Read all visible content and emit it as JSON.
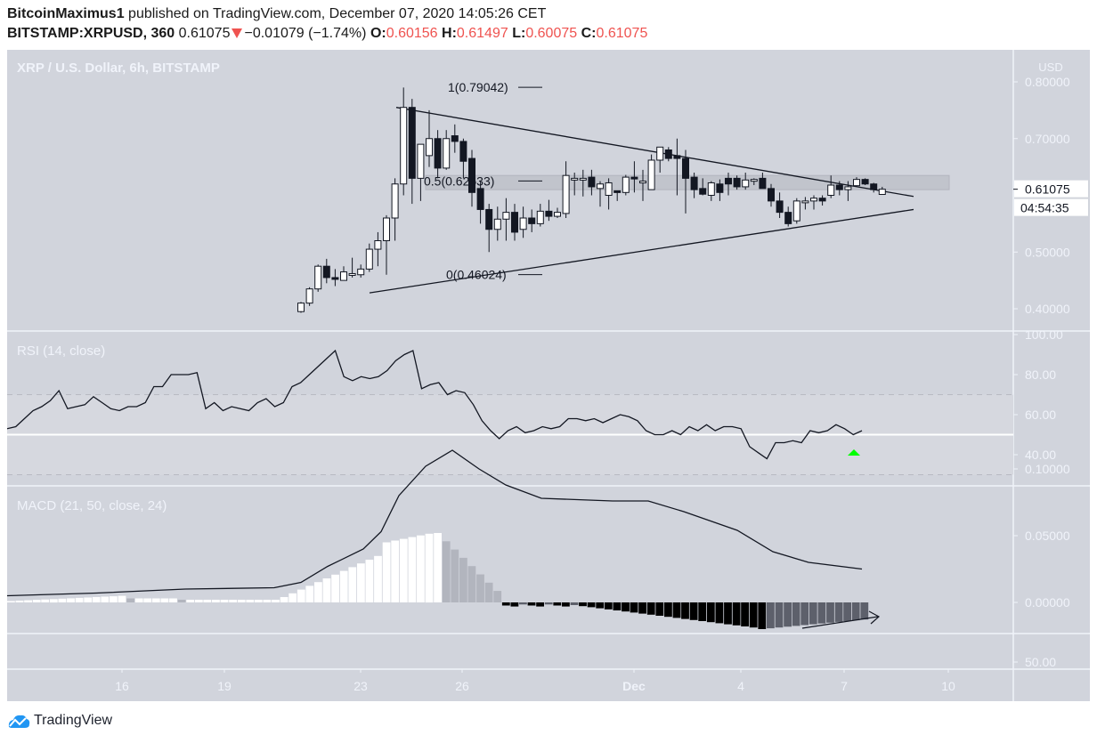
{
  "header": {
    "author": "BitcoinMaximus1",
    "published_text": "published on TradingView.com, December 07, 2020 14:05:26 CET",
    "symbol": "BITSTAMP:XRPUSD, 360",
    "last": "0.61075",
    "change": "−0.01079 (−1.74%)",
    "o_label": "O:",
    "o": "0.60156",
    "h_label": "H:",
    "h": "0.61497",
    "l_label": "L:",
    "l": "0.60075",
    "c_label": "C:",
    "c": "0.61075",
    "direction_icon": "down-triangle-icon"
  },
  "colors": {
    "background": "#d1d4dc",
    "up_candle": "#ffffff",
    "down_candle": "#131722",
    "down_arrow": "#ef5350",
    "rsi_signal": "#00ff00",
    "macd_hist_pos_strong": "#ffffff",
    "macd_hist_pos_weak": "#b2b5be",
    "macd_hist_neg_strong": "#000000",
    "macd_hist_neg_weak": "#5d606b"
  },
  "price_pane": {
    "title": "XRP / U.S. Dollar, 6h, BITSTAMP",
    "currency": "USD",
    "last_price_label": "0.61075",
    "countdown": "04:54:35",
    "fib": {
      "f1": "1(0.79042)",
      "f05": "0.5(0.62533)",
      "f0": "0(0.46024)"
    }
  },
  "rsi_pane": {
    "title": "RSI (14, close)"
  },
  "macd_pane": {
    "title": "MACD (21, 50, close, 24)"
  },
  "extra_pane": {
    "tick": "50.00"
  },
  "footer": {
    "brand": "TradingView",
    "logo_icon": "tradingview-logo-icon"
  },
  "chart_data": [
    {
      "type": "candlestick",
      "title": "XRP / U.S. Dollar, 6h, BITSTAMP",
      "ylabel": "USD",
      "y_ticks": [
        0.8,
        0.7,
        0.5,
        0.4
      ],
      "ylim": [
        0.38,
        0.82
      ],
      "x_ticks": [
        "16",
        "19",
        "23",
        "26",
        "Dec",
        "4",
        "7",
        "10"
      ],
      "candles_ohlc": [
        [
          0.395,
          0.412,
          0.393,
          0.41
        ],
        [
          0.41,
          0.438,
          0.405,
          0.435
        ],
        [
          0.435,
          0.478,
          0.43,
          0.475
        ],
        [
          0.475,
          0.488,
          0.445,
          0.455
        ],
        [
          0.455,
          0.47,
          0.44,
          0.452
        ],
        [
          0.45,
          0.475,
          0.45,
          0.465
        ],
        [
          0.462,
          0.49,
          0.455,
          0.462
        ],
        [
          0.46,
          0.478,
          0.455,
          0.47
        ],
        [
          0.47,
          0.515,
          0.465,
          0.505
        ],
        [
          0.505,
          0.535,
          0.475,
          0.52
        ],
        [
          0.52,
          0.565,
          0.46,
          0.56
        ],
        [
          0.56,
          0.63,
          0.52,
          0.62
        ],
        [
          0.62,
          0.79,
          0.6,
          0.755
        ],
        [
          0.755,
          0.77,
          0.585,
          0.63
        ],
        [
          0.63,
          0.665,
          0.59,
          0.69
        ],
        [
          0.67,
          0.75,
          0.65,
          0.7
        ],
        [
          0.7,
          0.715,
          0.63,
          0.648
        ],
        [
          0.648,
          0.715,
          0.645,
          0.7
        ],
        [
          0.705,
          0.725,
          0.675,
          0.695
        ],
        [
          0.695,
          0.7,
          0.63,
          0.66
        ],
        [
          0.665,
          0.68,
          0.58,
          0.605
        ],
        [
          0.612,
          0.625,
          0.55,
          0.575
        ],
        [
          0.575,
          0.585,
          0.5,
          0.54
        ],
        [
          0.54,
          0.58,
          0.52,
          0.558
        ],
        [
          0.558,
          0.595,
          0.52,
          0.57
        ],
        [
          0.57,
          0.585,
          0.52,
          0.535
        ],
        [
          0.54,
          0.58,
          0.525,
          0.56
        ],
        [
          0.56,
          0.575,
          0.535,
          0.55
        ],
        [
          0.55,
          0.585,
          0.545,
          0.572
        ],
        [
          0.572,
          0.592,
          0.555,
          0.563
        ],
        [
          0.563,
          0.578,
          0.56,
          0.57
        ],
        [
          0.568,
          0.66,
          0.56,
          0.635
        ],
        [
          0.63,
          0.64,
          0.6,
          0.63
        ],
        [
          0.63,
          0.645,
          0.598,
          0.63
        ],
        [
          0.632,
          0.645,
          0.6,
          0.615
        ],
        [
          0.612,
          0.625,
          0.58,
          0.62
        ],
        [
          0.6,
          0.63,
          0.575,
          0.622
        ],
        [
          0.608,
          0.608,
          0.59,
          0.605
        ],
        [
          0.605,
          0.636,
          0.6,
          0.632
        ],
        [
          0.632,
          0.66,
          0.605,
          0.63
        ],
        [
          0.625,
          0.645,
          0.59,
          0.625
        ],
        [
          0.61,
          0.672,
          0.615,
          0.662
        ],
        [
          0.662,
          0.682,
          0.64,
          0.685
        ],
        [
          0.68,
          0.685,
          0.66,
          0.665
        ],
        [
          0.67,
          0.7,
          0.6,
          0.665
        ],
        [
          0.665,
          0.68,
          0.568,
          0.63
        ],
        [
          0.632,
          0.64,
          0.595,
          0.61
        ],
        [
          0.612,
          0.63,
          0.6,
          0.602
        ],
        [
          0.6,
          0.625,
          0.59,
          0.622
        ],
        [
          0.62,
          0.628,
          0.59,
          0.605
        ],
        [
          0.63,
          0.64,
          0.6,
          0.62
        ],
        [
          0.63,
          0.635,
          0.61,
          0.615
        ],
        [
          0.615,
          0.64,
          0.61,
          0.627
        ],
        [
          0.628,
          0.63,
          0.618,
          0.628
        ],
        [
          0.63,
          0.64,
          0.62,
          0.612
        ],
        [
          0.612,
          0.62,
          0.58,
          0.59
        ],
        [
          0.59,
          0.605,
          0.56,
          0.57
        ],
        [
          0.57,
          0.58,
          0.545,
          0.55
        ],
        [
          0.555,
          0.595,
          0.55,
          0.59
        ],
        [
          0.59,
          0.597,
          0.575,
          0.59
        ],
        [
          0.59,
          0.6,
          0.575,
          0.595
        ],
        [
          0.595,
          0.6,
          0.582,
          0.59
        ],
        [
          0.6,
          0.635,
          0.595,
          0.618
        ],
        [
          0.618,
          0.625,
          0.6,
          0.61
        ],
        [
          0.61,
          0.625,
          0.59,
          0.615
        ],
        [
          0.617,
          0.632,
          0.615,
          0.628
        ],
        [
          0.628,
          0.63,
          0.618,
          0.62
        ],
        [
          0.62,
          0.622,
          0.605,
          0.61
        ],
        [
          0.60156,
          0.61497,
          0.60075,
          0.61075
        ]
      ],
      "last_price": 0.61075,
      "annotations": {
        "fibonacci": [
          {
            "level": 1,
            "price": 0.79042
          },
          {
            "level": 0.5,
            "price": 0.62533
          },
          {
            "level": 0,
            "price": 0.46024
          }
        ],
        "symmetrical_triangle": {
          "upper": [
            [
              0.755,
              "Nov 24"
            ],
            [
              0.598,
              "Dec 9"
            ]
          ],
          "lower": [
            [
              0.428,
              "Nov 23"
            ],
            [
              0.575,
              "Dec 9"
            ]
          ]
        },
        "resistance_zone": [
          0.61,
          0.635
        ]
      }
    },
    {
      "type": "line",
      "title": "RSI (14, close)",
      "y_ticks": [
        100,
        80,
        60,
        40
      ],
      "bands": {
        "upper": 70,
        "mid": 50,
        "lower": 30
      },
      "values": [
        53,
        54,
        58,
        62,
        64,
        67,
        72,
        63,
        64,
        65,
        69,
        66,
        63,
        62,
        64,
        64,
        66,
        74,
        74,
        80,
        80,
        80,
        81,
        63,
        66,
        62,
        64,
        63,
        62,
        66,
        68,
        64,
        66,
        74,
        76,
        80,
        84,
        88,
        92,
        79,
        77,
        79,
        78,
        79,
        82,
        87,
        90,
        92,
        73,
        75,
        76,
        70,
        72,
        71,
        65,
        57,
        52,
        48,
        52,
        54,
        51,
        52,
        54,
        53,
        54,
        58,
        58,
        57,
        58,
        56,
        58,
        60,
        59,
        57,
        52,
        50,
        50,
        52,
        50,
        54,
        52,
        55,
        52,
        54,
        54,
        53,
        44,
        41,
        38,
        46,
        46,
        47,
        46,
        52,
        51,
        52,
        55,
        53,
        50,
        52
      ],
      "annotation": "green up triangle near RSI 40 at latest bar"
    },
    {
      "type": "bar+line",
      "title": "MACD (21, 50, close, 24)",
      "y_ticks": [
        0.1,
        0.05,
        0.0
      ],
      "macd_line_peak": 0.114,
      "macd_line_last": 0.025,
      "histogram_min": -0.02,
      "histogram_max": 0.052,
      "annotation": "rising arrow under histogram (bullish divergence)"
    }
  ]
}
